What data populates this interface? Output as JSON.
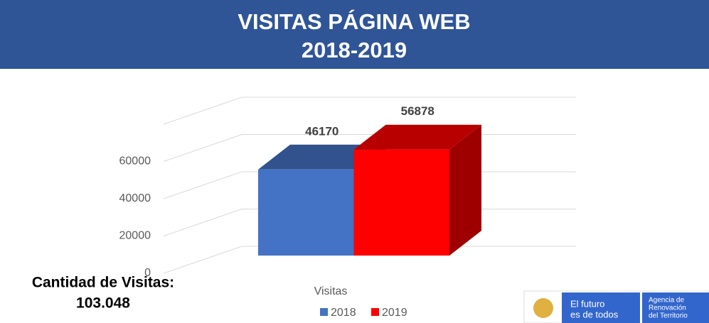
{
  "chart_data": {
    "type": "bar3d",
    "title": "VISITAS PÁGINA WEB",
    "subtitle": "2018-2019",
    "categories": [
      "Visitas"
    ],
    "series": [
      {
        "name": "2018",
        "color": "#4472c4",
        "values": [
          46170
        ]
      },
      {
        "name": "2019",
        "color": "#ff0000",
        "values": [
          56878
        ]
      }
    ],
    "ylim": [
      0,
      80000
    ],
    "yticks": [
      0,
      20000,
      40000,
      60000
    ],
    "grid": true,
    "legend": "bottom",
    "annotation": {
      "label": "Cantidad de Visitas:",
      "value": "103.048"
    },
    "logo": {
      "slogan": [
        "El futuro",
        "es de todos"
      ],
      "agency": [
        "Agencia de",
        "Renovación",
        "del Territorio"
      ]
    }
  }
}
